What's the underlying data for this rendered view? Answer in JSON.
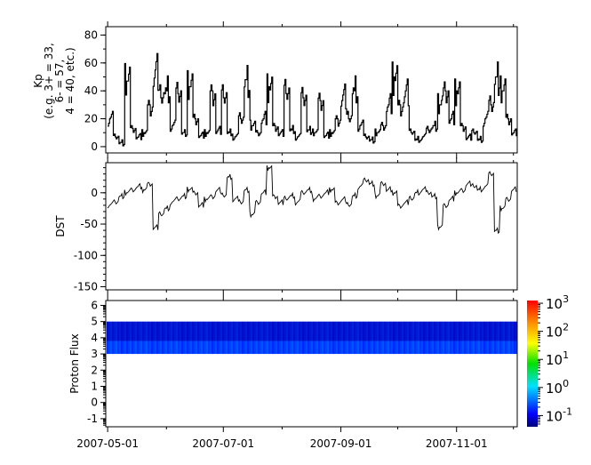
{
  "x_axis": {
    "range": [
      "2007-04-30",
      "2007-12-03"
    ],
    "tick_labels": [
      "2007-05-01",
      "2007-07-01",
      "2007-09-01",
      "2007-11-01"
    ],
    "tick_dates": [
      "2007-05-01",
      "2007-07-01",
      "2007-09-01",
      "2007-11-01"
    ]
  },
  "chart_data": [
    {
      "type": "line",
      "ylabel_lines": [
        "Kp",
        "(e.g. 3+ = 33,",
        "6- = 57,",
        "4 = 40, etc.)"
      ],
      "ylim": [
        -4.5,
        86
      ],
      "yticks": [
        0,
        20,
        40,
        60,
        80
      ],
      "ytick_labels": [
        "0",
        "20",
        "40",
        "60",
        "80"
      ],
      "x_start": "2007-05-01",
      "x_step_days": 3,
      "values": [
        20,
        7,
        3,
        47,
        13,
        7,
        10,
        30,
        55,
        35,
        40,
        15,
        38,
        10,
        43,
        20,
        8,
        10,
        40,
        12,
        35,
        10,
        7,
        20,
        48,
        15,
        10,
        20,
        43,
        15,
        10,
        38,
        12,
        7,
        35,
        12,
        10,
        33,
        8,
        10,
        20,
        37,
        20,
        40,
        15,
        7,
        5,
        10,
        15,
        30,
        50,
        30,
        40,
        10,
        5,
        7,
        12,
        15,
        30,
        40,
        20,
        40,
        15,
        7,
        10,
        5,
        20,
        30,
        50,
        40,
        20,
        10
      ]
    },
    {
      "type": "line",
      "ylabel": "DST",
      "ylim": [
        -155,
        48
      ],
      "yticks": [
        0,
        -50,
        -100,
        -150
      ],
      "ytick_labels": [
        "0",
        "-50",
        "-100",
        "-150"
      ],
      "x_start": "2007-05-01",
      "x_step_days": 3,
      "values": [
        -20,
        -15,
        -5,
        0,
        5,
        10,
        5,
        15,
        -55,
        -35,
        -25,
        -15,
        -10,
        -5,
        5,
        0,
        -20,
        -10,
        -5,
        5,
        -5,
        25,
        -10,
        -15,
        5,
        -35,
        -15,
        0,
        40,
        -5,
        -15,
        -10,
        -5,
        -15,
        0,
        5,
        -10,
        -5,
        0,
        5,
        -15,
        -10,
        -20,
        -5,
        10,
        20,
        15,
        -5,
        15,
        5,
        0,
        -20,
        -15,
        -10,
        0,
        5,
        0,
        -5,
        -55,
        -20,
        -10,
        0,
        5,
        15,
        10,
        5,
        10,
        30,
        -60,
        -25,
        -10,
        5
      ]
    },
    {
      "type": "heatmap",
      "ylabel": "Proton Flux",
      "ylim": [
        -1.5,
        6.3
      ],
      "yticks": [
        -1,
        0,
        1,
        2,
        3,
        4,
        5,
        6
      ],
      "ytick_labels": [
        "-1",
        "0",
        "1",
        "2",
        "3",
        "4",
        "5",
        "6"
      ],
      "band_y": [
        3,
        5
      ],
      "typical_value_upper": 0.08,
      "typical_value_lower": 0.15,
      "colorbar": {
        "scale": "log",
        "range": [
          0.04,
          1250
        ],
        "tick_values": [
          0.1,
          1,
          10,
          100,
          1000
        ],
        "tick_labels": [
          {
            "base": "10",
            "exp": "-1"
          },
          {
            "base": "10",
            "exp": "0"
          },
          {
            "base": "10",
            "exp": "1"
          },
          {
            "base": "10",
            "exp": "2"
          },
          {
            "base": "10",
            "exp": "3"
          }
        ],
        "colors": [
          "#000080",
          "#0000ff",
          "#00ffff",
          "#00ff00",
          "#ffff00",
          "#ff8000",
          "#ff0000"
        ]
      }
    }
  ]
}
